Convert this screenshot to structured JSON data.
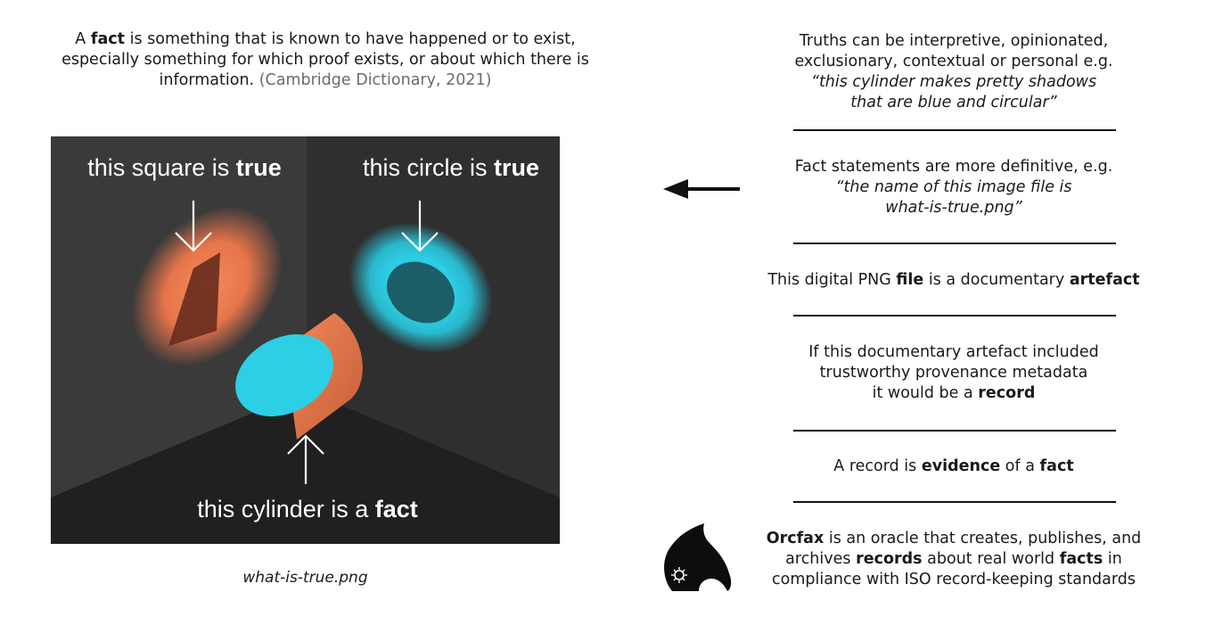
{
  "intro": {
    "prefix": "A",
    "bold": "fact",
    "text": "is something that is known to have happened or to exist, especially something for which proof exists, or about which there is information.",
    "citation": "(Cambridge Dictionary, 2021)"
  },
  "illustration": {
    "label_square_prefix": "this square is",
    "label_square_bold": "true",
    "label_circle_prefix": "this circle is",
    "label_circle_bold": "true",
    "label_cylinder_prefix": "this cylinder is a",
    "label_cylinder_bold": "fact",
    "caption": "what-is-true.png",
    "colors": {
      "orange": "#e8754a",
      "cyan": "#2ccfe6",
      "panel_dark": "#2b2b2b",
      "panel_mid": "#3b3b3b"
    }
  },
  "statements": {
    "truths": {
      "line1": "Truths can be interpretive, opinionated,",
      "line2": "exclusionary, contextual or personal e.g.",
      "quote1": "“this cylinder makes pretty shadows",
      "quote2": "that are blue and circular”"
    },
    "facts": {
      "line1": "Fact statements are more definitive, e.g.",
      "quote1": "“the name of this image file is",
      "quote2": "what-is-true.png”"
    },
    "file": {
      "prefix": "This digital PNG",
      "bold1": "file",
      "mid": "is a documentary",
      "bold2": "artefact"
    },
    "record": {
      "line1": "If this documentary artefact included",
      "line2": "trustworthy provenance metadata",
      "line3_prefix": "it would be a",
      "line3_bold": "record"
    },
    "evidence": {
      "prefix": "A record is",
      "bold1": "evidence",
      "mid": "of a",
      "bold2": "fact"
    }
  },
  "orcfax": {
    "name": "Orcfax",
    "t1": "is an oracle that creates, publishes, and",
    "t2": "archives",
    "b2": "records",
    "t3": "about real world",
    "b3": "facts",
    "t4": "in",
    "line3": "compliance with ISO record-keeping standards"
  }
}
